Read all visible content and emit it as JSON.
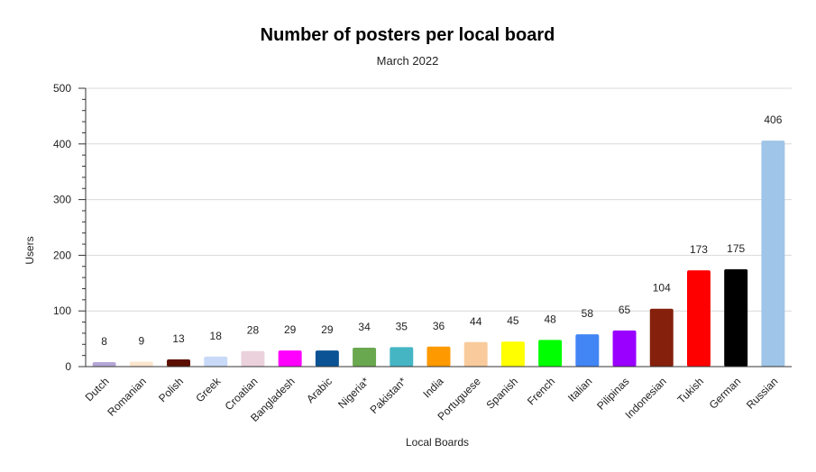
{
  "chart_data": {
    "type": "bar",
    "title": "Number of posters per local board",
    "subtitle": "March 2022",
    "xlabel": "Local Boards",
    "ylabel": "Users",
    "ylim": [
      0,
      500
    ],
    "yticks": [
      0,
      100,
      200,
      300,
      400,
      500
    ],
    "grid": true,
    "data_labels": true,
    "categories": [
      "Dutch",
      "Romanian",
      "Polish",
      "Greek",
      "Croatian",
      "Bangladesh",
      "Arabic",
      "Nigeria*",
      "Pakistan*",
      "India",
      "Portuguese",
      "Spanish",
      "French",
      "Italian",
      "Pilipinas",
      "Indonesian",
      "Tukish",
      "German",
      "Russian"
    ],
    "values": [
      8,
      9,
      13,
      18,
      28,
      29,
      29,
      34,
      35,
      36,
      44,
      45,
      48,
      58,
      65,
      104,
      173,
      175,
      406
    ],
    "colors": [
      "#b4a7d6",
      "#fce5cd",
      "#5b0f00",
      "#c9daf8",
      "#ead1dc",
      "#ff00ff",
      "#0b5394",
      "#6aa84f",
      "#45b5c4",
      "#ff9900",
      "#f9cb9c",
      "#ffff00",
      "#00ff00",
      "#4285f4",
      "#9900ff",
      "#85200c",
      "#ff0000",
      "#000000",
      "#9fc5e8"
    ]
  }
}
